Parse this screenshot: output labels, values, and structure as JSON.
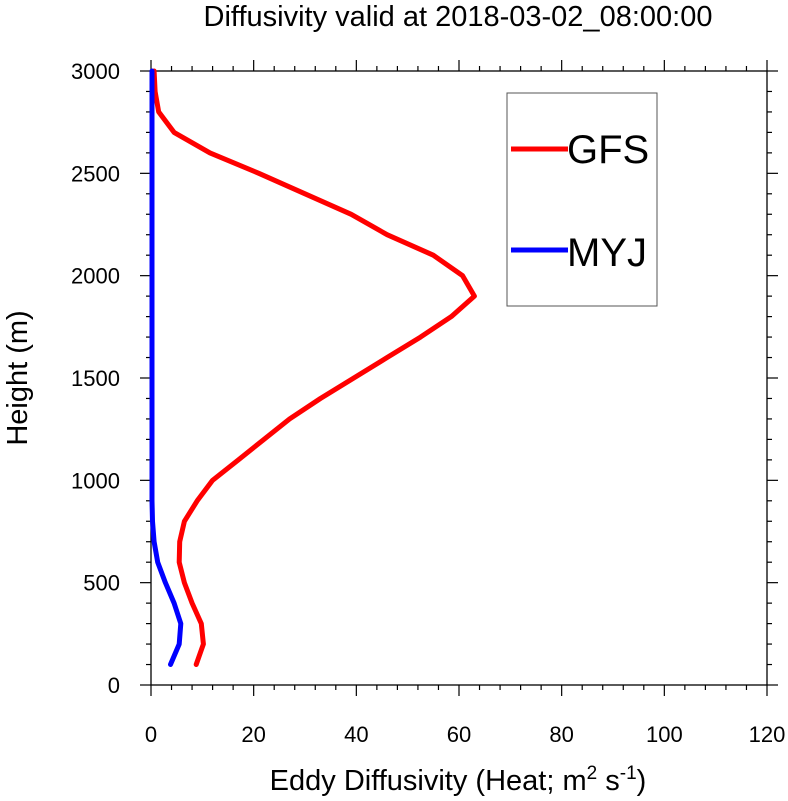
{
  "chart_data": {
    "type": "line",
    "title": "Diffusivity valid at 2018-03-02_08:00:00",
    "xlabel_main": "Eddy Diffusivity (Heat; m",
    "xlabel_sup1": "2",
    "xlabel_mid": " s",
    "xlabel_sup2": "-1",
    "xlabel_end": ")",
    "ylabel": "Height (m)",
    "xlim": [
      0,
      120
    ],
    "ylim": [
      0,
      3000
    ],
    "xticks": [
      "0",
      "20",
      "40",
      "60",
      "80",
      "100",
      "120"
    ],
    "yticks": [
      "0",
      "500",
      "1000",
      "1500",
      "2000",
      "2500",
      "3000"
    ],
    "grid": false,
    "legend_position": "top-right",
    "series": [
      {
        "name": "GFS",
        "color": "#ff0000",
        "points": [
          [
            8.8,
            100
          ],
          [
            10.2,
            200
          ],
          [
            9.8,
            300
          ],
          [
            8.0,
            400
          ],
          [
            6.5,
            500
          ],
          [
            5.5,
            600
          ],
          [
            5.6,
            700
          ],
          [
            6.5,
            800
          ],
          [
            9.0,
            900
          ],
          [
            12.0,
            1000
          ],
          [
            17.0,
            1100
          ],
          [
            22.0,
            1200
          ],
          [
            27.0,
            1300
          ],
          [
            33.0,
            1400
          ],
          [
            39.5,
            1500
          ],
          [
            46.0,
            1600
          ],
          [
            52.5,
            1700
          ],
          [
            58.5,
            1800
          ],
          [
            63.0,
            1900
          ],
          [
            60.7,
            2000
          ],
          [
            55.0,
            2100
          ],
          [
            46.0,
            2200
          ],
          [
            39.0,
            2300
          ],
          [
            30.0,
            2400
          ],
          [
            21.0,
            2500
          ],
          [
            11.5,
            2600
          ],
          [
            4.5,
            2700
          ],
          [
            1.5,
            2800
          ],
          [
            0.8,
            2900
          ],
          [
            0.6,
            3000
          ]
        ]
      },
      {
        "name": "MYJ",
        "color": "#0000ff",
        "points": [
          [
            3.8,
            100
          ],
          [
            5.5,
            200
          ],
          [
            5.8,
            300
          ],
          [
            4.5,
            400
          ],
          [
            2.8,
            500
          ],
          [
            1.3,
            600
          ],
          [
            0.6,
            700
          ],
          [
            0.3,
            800
          ],
          [
            0.2,
            900
          ],
          [
            0.2,
            1000
          ],
          [
            0.2,
            1500
          ],
          [
            0.2,
            2000
          ],
          [
            0.2,
            2500
          ],
          [
            0.2,
            3000
          ]
        ]
      }
    ]
  }
}
